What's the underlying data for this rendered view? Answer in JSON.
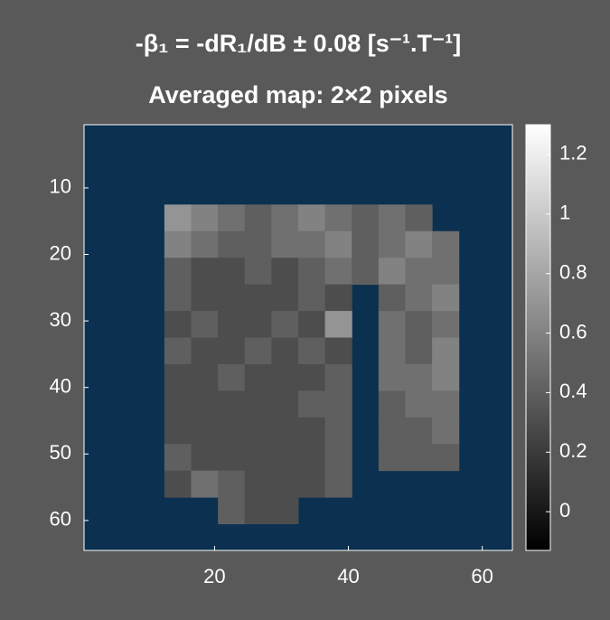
{
  "chart_data": {
    "type": "heatmap",
    "title": "-β₁ = -dR₁/dB ± 0.08 [s⁻¹.T⁻¹]",
    "subtitle": "Averaged map: 2×2 pixels",
    "x": [
      2.5,
      6.5,
      10.5,
      14.5,
      18.5,
      22.5,
      26.5,
      30.5,
      34.5,
      38.5,
      42.5,
      46.5,
      50.5,
      54.5,
      58.5,
      62.5
    ],
    "y": [
      2.5,
      6.5,
      10.5,
      14.5,
      18.5,
      22.5,
      26.5,
      30.5,
      34.5,
      38.5,
      42.5,
      46.5,
      50.5,
      54.5,
      58.5,
      62.5
    ],
    "z": [
      [
        null,
        null,
        null,
        null,
        null,
        null,
        null,
        null,
        null,
        null,
        null,
        null,
        null,
        null,
        null,
        null
      ],
      [
        null,
        null,
        null,
        null,
        null,
        null,
        null,
        null,
        null,
        null,
        null,
        null,
        null,
        null,
        null,
        null
      ],
      [
        null,
        null,
        null,
        null,
        null,
        null,
        null,
        null,
        null,
        null,
        null,
        null,
        null,
        null,
        null,
        null
      ],
      [
        null,
        null,
        null,
        0.7,
        0.6,
        0.5,
        0.4,
        0.5,
        0.6,
        0.5,
        0.4,
        0.5,
        0.4,
        null,
        null,
        null
      ],
      [
        null,
        null,
        null,
        0.6,
        0.5,
        0.4,
        0.4,
        0.5,
        0.5,
        0.6,
        0.4,
        0.5,
        0.6,
        0.5,
        null,
        null
      ],
      [
        null,
        null,
        null,
        0.4,
        0.3,
        0.3,
        0.4,
        0.3,
        0.4,
        0.5,
        0.4,
        0.6,
        0.5,
        0.5,
        null,
        null
      ],
      [
        null,
        null,
        null,
        0.4,
        0.3,
        0.3,
        0.3,
        0.3,
        0.4,
        0.3,
        null,
        0.4,
        0.5,
        0.6,
        null,
        null
      ],
      [
        null,
        null,
        null,
        0.3,
        0.4,
        0.3,
        0.3,
        0.4,
        0.3,
        0.7,
        null,
        0.5,
        0.4,
        0.5,
        null,
        null
      ],
      [
        null,
        null,
        null,
        0.4,
        0.3,
        0.3,
        0.4,
        0.3,
        0.4,
        0.3,
        null,
        0.5,
        0.4,
        0.6,
        null,
        null
      ],
      [
        null,
        null,
        null,
        0.3,
        0.3,
        0.4,
        0.3,
        0.3,
        0.3,
        0.4,
        null,
        0.5,
        0.5,
        0.6,
        null,
        null
      ],
      [
        null,
        null,
        null,
        0.3,
        0.3,
        0.3,
        0.3,
        0.3,
        0.4,
        0.4,
        null,
        0.4,
        0.5,
        0.5,
        null,
        null
      ],
      [
        null,
        null,
        null,
        0.3,
        0.3,
        0.3,
        0.3,
        0.3,
        0.3,
        0.4,
        null,
        0.4,
        0.4,
        0.5,
        null,
        null
      ],
      [
        null,
        null,
        null,
        0.4,
        0.3,
        0.3,
        0.3,
        0.3,
        0.3,
        0.4,
        null,
        0.4,
        0.4,
        0.4,
        null,
        null
      ],
      [
        null,
        null,
        null,
        0.3,
        0.5,
        0.4,
        0.3,
        0.3,
        0.3,
        0.4,
        null,
        null,
        null,
        null,
        null,
        null
      ],
      [
        null,
        null,
        null,
        null,
        null,
        0.4,
        0.3,
        0.3,
        null,
        null,
        null,
        null,
        null,
        null,
        null,
        null
      ],
      [
        null,
        null,
        null,
        null,
        null,
        null,
        null,
        null,
        null,
        null,
        null,
        null,
        null,
        null,
        null,
        null
      ]
    ],
    "xlim": [
      0.5,
      64.5
    ],
    "ylim": [
      64.5,
      0.5
    ],
    "xticks": [
      20,
      40,
      60
    ],
    "yticks": [
      10,
      20,
      30,
      40,
      50,
      60
    ],
    "clim": [
      -0.13,
      1.3
    ],
    "cticks": [
      0,
      0.2,
      0.4,
      0.6,
      0.8,
      1,
      1.2
    ],
    "colormap": "gray",
    "nan_color": "#0b3050"
  }
}
